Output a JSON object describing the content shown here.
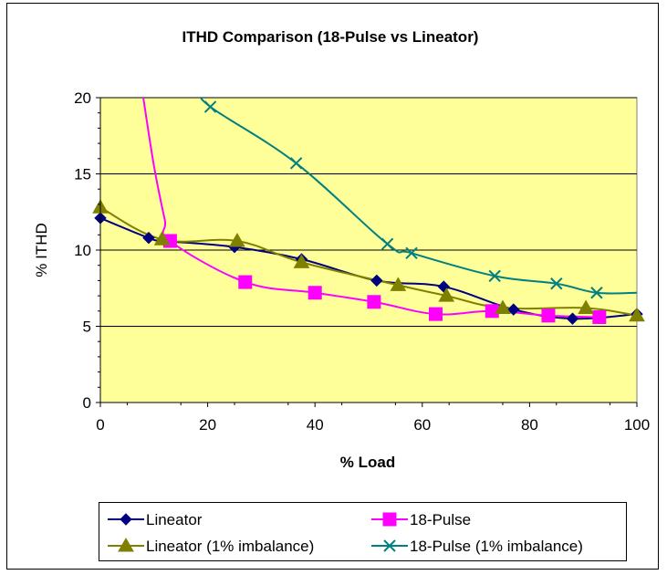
{
  "chart_data": {
    "type": "line",
    "title": "ITHD Comparison (18-Pulse vs Lineator)",
    "xlabel": "% Load",
    "ylabel": "% ITHD",
    "xlim": [
      0,
      100
    ],
    "ylim": [
      0,
      20
    ],
    "x_ticks": [
      "0",
      "20",
      "40",
      "60",
      "80",
      "100"
    ],
    "y_ticks": [
      "0",
      "5",
      "10",
      "15",
      "20"
    ],
    "grid": "horizontal major gridlines",
    "plot_background": "#ffff99",
    "legend_position": "bottom",
    "series": [
      {
        "name": "Lineator",
        "color": "#000080",
        "marker": "diamond",
        "points": [
          [
            0,
            12.1
          ],
          [
            9,
            10.8
          ],
          [
            12,
            10.6
          ],
          [
            25,
            10.2
          ],
          [
            37.5,
            9.4
          ],
          [
            51.5,
            8.0
          ],
          [
            64,
            7.6
          ],
          [
            77,
            6.1
          ],
          [
            88,
            5.5
          ],
          [
            100,
            5.8
          ]
        ]
      },
      {
        "name": "18-Pulse",
        "color": "#ff00ff",
        "marker": "square",
        "points": [
          [
            13,
            10.6
          ],
          [
            27,
            7.9
          ],
          [
            40,
            7.2
          ],
          [
            51,
            6.6
          ],
          [
            62.5,
            5.8
          ],
          [
            73,
            6.0
          ],
          [
            83.5,
            5.7
          ],
          [
            93,
            5.6
          ]
        ],
        "curve_extension": [
          [
            8,
            20
          ],
          [
            10,
            15.5
          ],
          [
            12,
            12.0
          ]
        ]
      },
      {
        "name": "Lineator (1% imbalance)",
        "color": "#808000",
        "marker": "triangle",
        "points": [
          [
            0,
            12.8
          ],
          [
            11.5,
            10.7
          ],
          [
            25.5,
            10.6
          ],
          [
            37.5,
            9.2
          ],
          [
            55.5,
            7.7
          ],
          [
            64.5,
            7.0
          ],
          [
            75,
            6.2
          ],
          [
            90.5,
            6.2
          ],
          [
            100,
            5.7
          ]
        ]
      },
      {
        "name": "18-Pulse (1% imbalance)",
        "color": "#008080",
        "marker": "x",
        "points": [
          [
            20.5,
            19.4
          ],
          [
            36.5,
            15.7
          ],
          [
            53.5,
            10.4
          ],
          [
            58,
            9.8
          ],
          [
            73.5,
            8.3
          ],
          [
            85,
            7.8
          ],
          [
            92.5,
            7.2
          ]
        ],
        "curve_extension_start": [
          [
            18.5,
            20.5
          ]
        ],
        "curve_extension_end": [
          [
            100,
            7.2
          ]
        ]
      }
    ]
  }
}
